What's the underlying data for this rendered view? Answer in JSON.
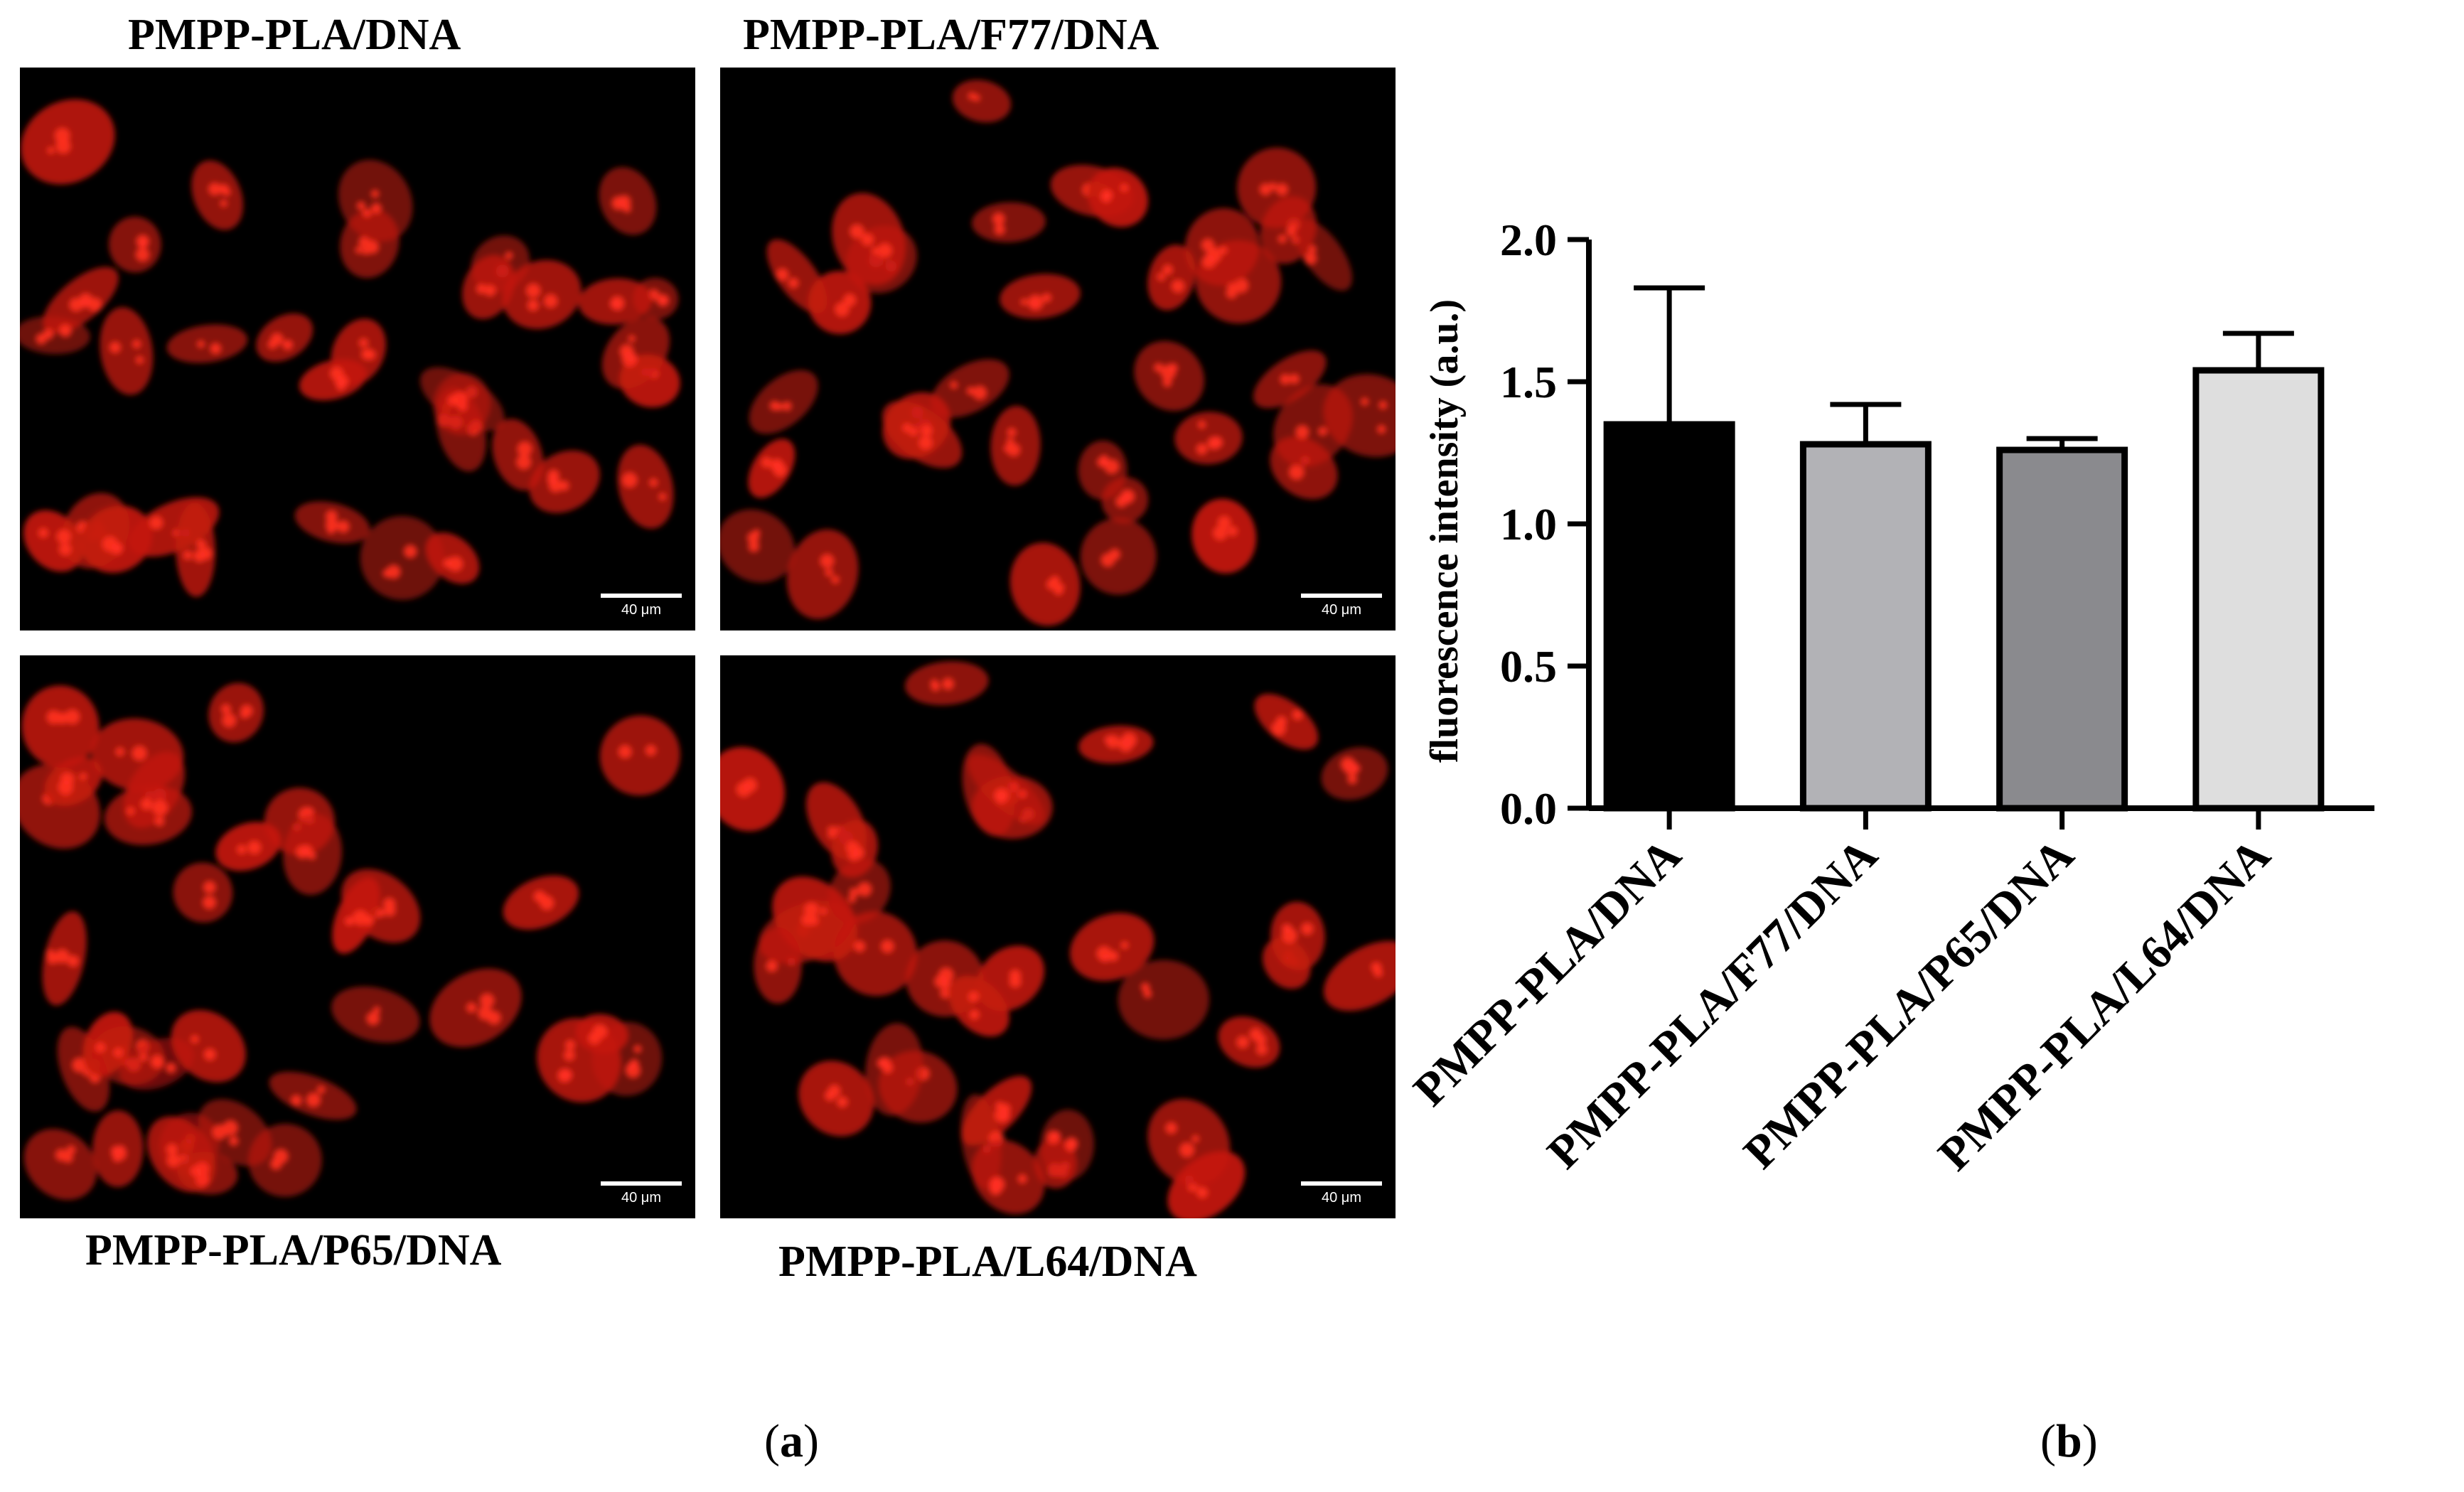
{
  "panel_a": {
    "images": [
      {
        "title": "PMPP-PLA/DNA",
        "scale_label": "40 μm"
      },
      {
        "title": "PMPP-PLA/F77/DNA",
        "scale_label": "40 μm"
      },
      {
        "title": "PMPP-PLA/P65/DNA",
        "scale_label": "40 μm"
      },
      {
        "title": "PMPP-PLA/L64/DNA",
        "scale_label": "40 μm"
      }
    ],
    "caption": {
      "open": "(",
      "letter": "a",
      "close": ")"
    }
  },
  "panel_b": {
    "caption": {
      "open": "(",
      "letter": "b",
      "close": ")"
    }
  },
  "chart_data": {
    "type": "bar",
    "categories": [
      "PMPP-PLA/DNA",
      "PMPP-PLA/F77/DNA",
      "PMPP-PLA/P65/DNA",
      "PMPP-PLA/L64/DNA"
    ],
    "values": [
      1.35,
      1.28,
      1.26,
      1.54
    ],
    "errors": [
      0.48,
      0.14,
      0.04,
      0.13
    ],
    "colors": [
      "#000000",
      "#b2b2b6",
      "#8a8a8e",
      "#dedede"
    ],
    "ylabel": "fluorescence intensity (a.u.)",
    "ylim": [
      0,
      2.0
    ],
    "yticks": [
      "0.0",
      "0.5",
      "1.0",
      "1.5",
      "2.0"
    ],
    "grid": false,
    "legend": "none"
  },
  "colors": {
    "cell_fill": "#c41a10",
    "nucleus": "#ff3020",
    "background": "#000000"
  }
}
